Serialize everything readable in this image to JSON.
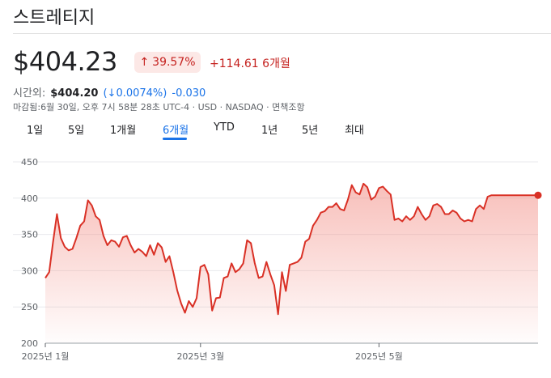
{
  "stock": {
    "name": "스트레티지",
    "price": "$404.23",
    "badge_arrow": "↑",
    "badge_pct": "39.57%",
    "change": "+114.61 6개월",
    "after_hours": {
      "label": "시간외:",
      "price": "$404.20",
      "pct": "(↓0.0074%)",
      "abs": "-0.030"
    },
    "meta": "마감됨:6월 30일, 오후 7시 58분 28초 UTC-4 · USD · NASDAQ · 면책조항"
  },
  "tabs": [
    {
      "label": "1일"
    },
    {
      "label": "5일"
    },
    {
      "label": "1개월"
    },
    {
      "label": "6개월",
      "active": true
    },
    {
      "label": "YTD"
    },
    {
      "label": "1년"
    },
    {
      "label": "5년"
    },
    {
      "label": "최대"
    }
  ],
  "colors": {
    "line": "#d93025",
    "fill": "#f28b82",
    "active_tab": "#1a73e8",
    "negative": "#c5221f",
    "positive_badge_bg": "#fce8e6"
  },
  "chart_data": {
    "type": "area",
    "title": "",
    "xlabel": "",
    "ylabel": "",
    "ylim": [
      200,
      450
    ],
    "yticks": [
      200,
      250,
      300,
      350,
      400,
      450
    ],
    "xticks": [
      {
        "label": "2025년 1월",
        "x": 0
      },
      {
        "label": "2025년 3월",
        "x": 40
      },
      {
        "label": "2025년 5월",
        "x": 86
      }
    ],
    "grid": true,
    "series": [
      {
        "x": [
          0,
          1,
          2,
          3,
          4,
          5,
          6,
          7,
          8,
          9,
          10,
          11,
          12,
          13,
          14,
          15,
          16,
          17,
          18,
          19,
          20,
          21,
          22,
          23,
          24,
          25,
          26,
          27,
          28,
          29,
          30,
          31,
          32,
          33,
          34,
          35,
          36,
          37,
          38,
          39,
          40,
          41,
          42,
          43,
          44,
          45,
          46,
          47,
          48,
          49,
          50,
          51,
          52,
          53,
          54,
          55,
          56,
          57,
          58,
          59,
          60,
          61,
          62,
          63,
          64,
          65,
          66,
          67,
          68,
          69,
          70,
          71,
          72,
          73,
          74,
          75,
          76,
          77,
          78,
          79,
          80,
          81,
          82,
          83,
          84,
          85,
          86,
          87,
          88,
          89,
          90,
          91,
          92,
          93,
          94,
          95,
          96,
          97,
          98,
          99,
          100,
          101,
          102,
          103,
          104,
          105,
          106,
          107,
          108,
          109,
          110,
          111,
          112,
          113,
          114,
          115,
          116,
          117,
          118,
          119,
          120,
          121,
          122,
          123,
          124,
          125,
          126,
          127
        ],
        "values": [
          290,
          298,
          340,
          378,
          345,
          333,
          328,
          330,
          345,
          362,
          368,
          397,
          390,
          375,
          370,
          348,
          335,
          342,
          340,
          333,
          346,
          348,
          335,
          325,
          330,
          326,
          320,
          335,
          322,
          338,
          332,
          312,
          320,
          298,
          273,
          255,
          242,
          258,
          250,
          262,
          305,
          308,
          295,
          245,
          262,
          263,
          290,
          292,
          310,
          298,
          302,
          310,
          342,
          338,
          310,
          290,
          292,
          312,
          295,
          280,
          240,
          298,
          272,
          308,
          310,
          312,
          318,
          340,
          344,
          362,
          370,
          380,
          382,
          388,
          388,
          393,
          385,
          383,
          398,
          418,
          408,
          405,
          420,
          415,
          398,
          402,
          414,
          416,
          410,
          405,
          370,
          372,
          368,
          375,
          370,
          375,
          388,
          378,
          370,
          375,
          390,
          392,
          388,
          378,
          378,
          383,
          380,
          372,
          368,
          370,
          368,
          385,
          390,
          385,
          402,
          404,
          404,
          404,
          404,
          404,
          404,
          404,
          404,
          404,
          404,
          404,
          404,
          404
        ]
      }
    ]
  }
}
